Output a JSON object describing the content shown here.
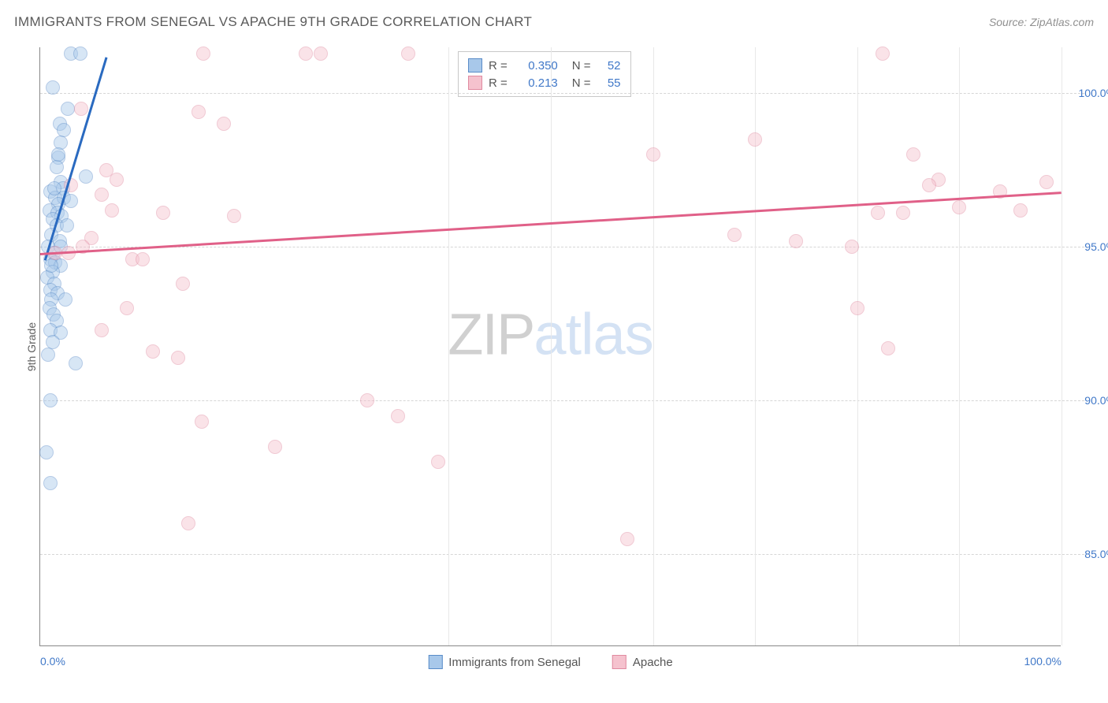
{
  "title": "IMMIGRANTS FROM SENEGAL VS APACHE 9TH GRADE CORRELATION CHART",
  "source": "Source: ZipAtlas.com",
  "watermark": {
    "part1": "ZIP",
    "part2": "atlas"
  },
  "chart": {
    "type": "scatter",
    "xlim": [
      0,
      100
    ],
    "ylim": [
      82,
      101.5
    ],
    "yaxis_title": "9th Grade",
    "yticks": [
      85.0,
      90.0,
      95.0,
      100.0
    ],
    "ytick_labels": [
      "85.0%",
      "90.0%",
      "95.0%",
      "100.0%"
    ],
    "xticks": [
      0,
      50,
      100
    ],
    "xtick_labels": [
      "0.0%",
      "",
      "100.0%"
    ],
    "xtick_minor": [
      10,
      20,
      30,
      40,
      60,
      70,
      80,
      90
    ],
    "xtick_vgrid": [
      40,
      50,
      60,
      70,
      80,
      90,
      100
    ],
    "background_color": "#ffffff",
    "grid_color": "#d6d6d6",
    "marker_radius": 9,
    "marker_opacity": 0.45,
    "series": [
      {
        "name": "Immigrants from Senegal",
        "color_fill": "#a8c8ea",
        "color_stroke": "#5a8cc8",
        "R": "0.350",
        "N": "52",
        "trend": {
          "x1": 0.5,
          "y1": 94.6,
          "x2": 6.5,
          "y2": 101.2,
          "color": "#2a6ac0"
        },
        "points": [
          [
            3.0,
            101.3
          ],
          [
            3.9,
            101.3
          ],
          [
            1.2,
            100.2
          ],
          [
            1.9,
            99.0
          ],
          [
            2.3,
            98.8
          ],
          [
            2.0,
            98.4
          ],
          [
            1.8,
            97.9
          ],
          [
            1.6,
            97.6
          ],
          [
            4.5,
            97.3
          ],
          [
            2.0,
            97.1
          ],
          [
            2.2,
            96.9
          ],
          [
            1.0,
            96.8
          ],
          [
            1.5,
            96.6
          ],
          [
            2.3,
            96.6
          ],
          [
            3.0,
            96.5
          ],
          [
            1.8,
            96.4
          ],
          [
            0.9,
            96.2
          ],
          [
            1.7,
            96.1
          ],
          [
            2.1,
            96.0
          ],
          [
            1.2,
            95.9
          ],
          [
            1.6,
            95.7
          ],
          [
            2.6,
            95.7
          ],
          [
            1.1,
            95.4
          ],
          [
            1.9,
            95.2
          ],
          [
            0.8,
            95.0
          ],
          [
            1.3,
            94.8
          ],
          [
            1.0,
            94.6
          ],
          [
            1.5,
            94.5
          ],
          [
            2.0,
            94.4
          ],
          [
            1.2,
            94.2
          ],
          [
            0.7,
            94.0
          ],
          [
            1.4,
            93.8
          ],
          [
            1.0,
            93.6
          ],
          [
            1.7,
            93.5
          ],
          [
            1.1,
            93.3
          ],
          [
            2.5,
            93.3
          ],
          [
            0.9,
            93.0
          ],
          [
            1.3,
            92.8
          ],
          [
            1.6,
            92.6
          ],
          [
            1.0,
            92.3
          ],
          [
            2.0,
            92.2
          ],
          [
            1.2,
            91.9
          ],
          [
            0.8,
            91.5
          ],
          [
            3.5,
            91.2
          ],
          [
            1.0,
            90.0
          ],
          [
            0.6,
            88.3
          ],
          [
            1.0,
            87.3
          ],
          [
            1.8,
            98.0
          ],
          [
            2.7,
            99.5
          ],
          [
            1.4,
            96.9
          ],
          [
            2.0,
            95.0
          ],
          [
            1.1,
            94.4
          ]
        ]
      },
      {
        "name": "Apache",
        "color_fill": "#f5c2ce",
        "color_stroke": "#e08aa0",
        "R": "0.213",
        "N": "55",
        "trend": {
          "x1": 0,
          "y1": 94.8,
          "x2": 100,
          "y2": 96.8,
          "color": "#e06088"
        },
        "points": [
          [
            16.0,
            101.3
          ],
          [
            26.0,
            101.3
          ],
          [
            27.5,
            101.3
          ],
          [
            36.0,
            101.3
          ],
          [
            82.5,
            101.3
          ],
          [
            15.5,
            99.4
          ],
          [
            18.0,
            99.0
          ],
          [
            70.0,
            98.5
          ],
          [
            85.5,
            98.0
          ],
          [
            88.0,
            97.2
          ],
          [
            87.0,
            97.0
          ],
          [
            98.5,
            97.1
          ],
          [
            3.0,
            97.0
          ],
          [
            6.0,
            96.7
          ],
          [
            6.5,
            97.5
          ],
          [
            7.0,
            96.2
          ],
          [
            7.5,
            97.2
          ],
          [
            12.0,
            96.1
          ],
          [
            19.0,
            96.0
          ],
          [
            82.0,
            96.1
          ],
          [
            84.5,
            96.1
          ],
          [
            94.0,
            96.8
          ],
          [
            96.0,
            96.2
          ],
          [
            5.0,
            95.3
          ],
          [
            4.2,
            95.0
          ],
          [
            1.5,
            94.8
          ],
          [
            2.8,
            94.8
          ],
          [
            9.0,
            94.6
          ],
          [
            10.0,
            94.6
          ],
          [
            68.0,
            95.4
          ],
          [
            74.0,
            95.2
          ],
          [
            79.5,
            95.0
          ],
          [
            90.0,
            96.3
          ],
          [
            14.0,
            93.8
          ],
          [
            8.5,
            93.0
          ],
          [
            6.0,
            92.3
          ],
          [
            80.0,
            93.0
          ],
          [
            11.0,
            91.6
          ],
          [
            83.0,
            91.7
          ],
          [
            13.5,
            91.4
          ],
          [
            15.8,
            89.3
          ],
          [
            35.0,
            89.5
          ],
          [
            23.0,
            88.5
          ],
          [
            39.0,
            88.0
          ],
          [
            32.0,
            90.0
          ],
          [
            14.5,
            86.0
          ],
          [
            57.5,
            85.5
          ],
          [
            4.0,
            99.5
          ],
          [
            60.0,
            98.0
          ]
        ]
      }
    ],
    "bottom_legend": [
      {
        "label": "Immigrants from Senegal",
        "fill": "#a8c8ea",
        "stroke": "#5a8cc8"
      },
      {
        "label": "Apache",
        "fill": "#f5c2ce",
        "stroke": "#e08aa0"
      }
    ]
  }
}
